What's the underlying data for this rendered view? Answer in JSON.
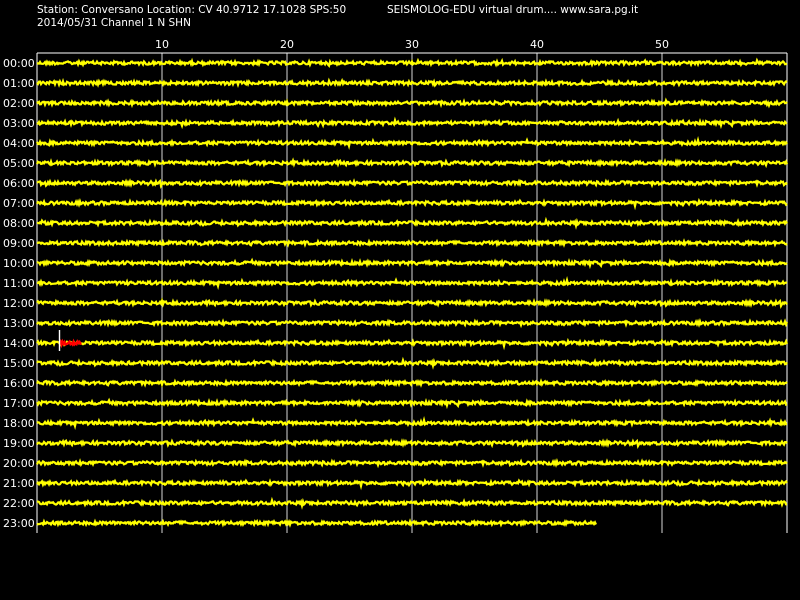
{
  "header": {
    "station_line": "Station: Conversano Location: CV 40.9712 17.1028 SPS:50",
    "site_line": "SEISMOLOG-EDU virtual drum.... www.sara.pg.it",
    "date_line": "2014/05/31  Channel 1 N SHN"
  },
  "colors": {
    "background": "#000000",
    "trace": "#ffff00",
    "event": "#ff0000",
    "marker": "#ffffff",
    "grid": "#ffffff",
    "text": "#ffffff"
  },
  "chart_data": {
    "type": "line",
    "x_unit": "minutes",
    "xlim": [
      0,
      60
    ],
    "x_ticks": [
      10,
      20,
      30,
      40,
      50
    ],
    "grid": true,
    "rows": [
      {
        "label": "00:00",
        "end_minute": 60
      },
      {
        "label": "01:00",
        "end_minute": 60
      },
      {
        "label": "02:00",
        "end_minute": 60
      },
      {
        "label": "03:00",
        "end_minute": 60
      },
      {
        "label": "04:00",
        "end_minute": 60
      },
      {
        "label": "05:00",
        "end_minute": 60
      },
      {
        "label": "06:00",
        "end_minute": 60
      },
      {
        "label": "07:00",
        "end_minute": 60
      },
      {
        "label": "08:00",
        "end_minute": 60
      },
      {
        "label": "09:00",
        "end_minute": 60
      },
      {
        "label": "10:00",
        "end_minute": 60
      },
      {
        "label": "11:00",
        "end_minute": 60
      },
      {
        "label": "12:00",
        "end_minute": 60
      },
      {
        "label": "13:00",
        "end_minute": 60
      },
      {
        "label": "14:00",
        "end_minute": 60,
        "marker_minute": 1.8,
        "event": [
          1.8,
          3.6
        ]
      },
      {
        "label": "15:00",
        "end_minute": 60
      },
      {
        "label": "16:00",
        "end_minute": 60
      },
      {
        "label": "17:00",
        "end_minute": 60
      },
      {
        "label": "18:00",
        "end_minute": 60
      },
      {
        "label": "19:00",
        "end_minute": 60
      },
      {
        "label": "20:00",
        "end_minute": 60
      },
      {
        "label": "21:00",
        "end_minute": 60
      },
      {
        "label": "22:00",
        "end_minute": 60
      },
      {
        "label": "23:00",
        "end_minute": 44.8
      }
    ]
  }
}
